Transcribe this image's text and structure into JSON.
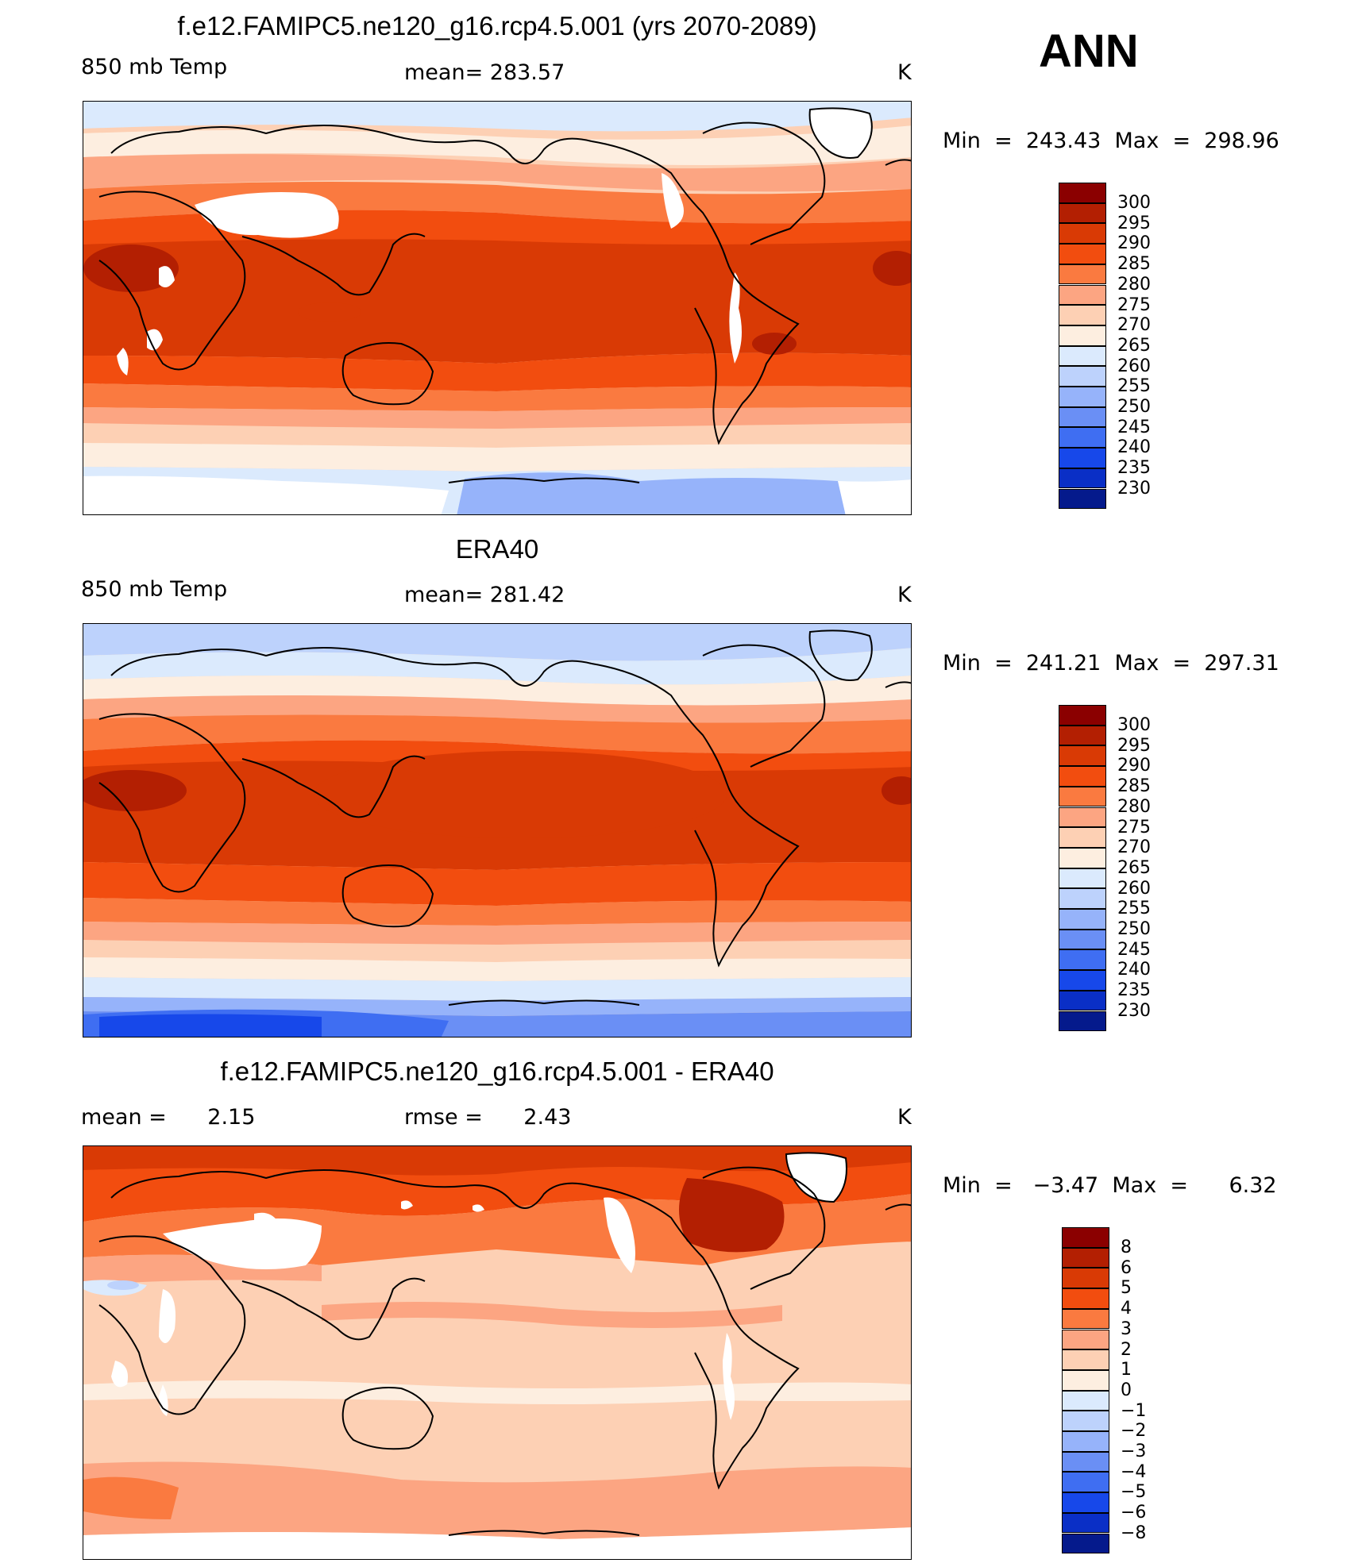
{
  "season": "ANN",
  "panels": [
    {
      "title": "f.e12.FAMIPC5.ne120_g16.rcp4.5.001 (yrs 2070-2089)",
      "left_label": "850 mb Temp",
      "center_label": "mean= 283.57",
      "units": "K",
      "minmax": "Min  =  243.43  Max  =  298.96",
      "colorbar": {
        "labels": [
          "300",
          "295",
          "290",
          "285",
          "280",
          "275",
          "270",
          "265",
          "260",
          "255",
          "250",
          "245",
          "240",
          "235",
          "230"
        ],
        "colors": [
          "#8b0000",
          "#b31f02",
          "#d93a05",
          "#f24d0f",
          "#fa7a40",
          "#fca582",
          "#fdd0b4",
          "#fdeee0",
          "#dbeafd",
          "#bdd2fc",
          "#96b3fa",
          "#6a8ff5",
          "#3f6ef2",
          "#1748ea",
          "#0a2fc6",
          "#051a8c"
        ]
      }
    },
    {
      "title": "ERA40",
      "left_label": "850 mb Temp",
      "center_label": "mean= 281.42",
      "units": "K",
      "minmax": "Min  =  241.21  Max  =  297.31",
      "colorbar": {
        "labels": [
          "300",
          "295",
          "290",
          "285",
          "280",
          "275",
          "270",
          "265",
          "260",
          "255",
          "250",
          "245",
          "240",
          "235",
          "230"
        ],
        "colors": [
          "#8b0000",
          "#b31f02",
          "#d93a05",
          "#f24d0f",
          "#fa7a40",
          "#fca582",
          "#fdd0b4",
          "#fdeee0",
          "#dbeafd",
          "#bdd2fc",
          "#96b3fa",
          "#6a8ff5",
          "#3f6ef2",
          "#1748ea",
          "#0a2fc6",
          "#051a8c"
        ]
      }
    },
    {
      "title": "f.e12.FAMIPC5.ne120_g16.rcp4.5.001 - ERA40",
      "left_label": "mean =      2.15",
      "center_label": "rmse =      2.43",
      "units": "K",
      "minmax": "Min  =   −3.47  Max  =      6.32",
      "colorbar": {
        "labels": [
          "8",
          "6",
          "5",
          "4",
          "3",
          "2",
          "1",
          "0",
          "−1",
          "−2",
          "−3",
          "−4",
          "−5",
          "−6",
          "−8"
        ],
        "colors": [
          "#8b0000",
          "#b31f02",
          "#d93a05",
          "#f24d0f",
          "#fa7a40",
          "#fca582",
          "#fdd0b4",
          "#fdeee0",
          "#dbeafd",
          "#bdd2fc",
          "#96b3fa",
          "#6a8ff5",
          "#3f6ef2",
          "#1748ea",
          "#0a2fc6",
          "#051a8c"
        ]
      }
    }
  ]
}
